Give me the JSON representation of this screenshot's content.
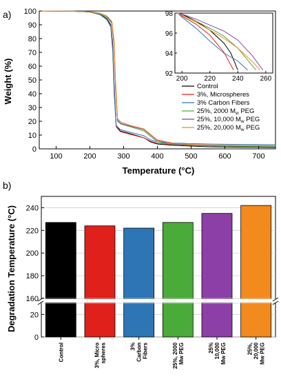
{
  "chart_data": [
    {
      "panel_label": "a)",
      "type": "line",
      "xlabel": "Temperature (°C)",
      "ylabel": "Weight (%)",
      "xlim": [
        50,
        750
      ],
      "ylim": [
        0,
        100
      ],
      "xticks": [
        "100",
        "200",
        "300",
        "400",
        "500",
        "600",
        "700"
      ],
      "yticks": [
        "0",
        "10",
        "20",
        "30",
        "40",
        "50",
        "60",
        "70",
        "80",
        "90",
        "100"
      ],
      "legend_position": "inside-right",
      "legend_title": "",
      "series": [
        {
          "name": "Control",
          "color": "#000000",
          "x": [
            50,
            150,
            200,
            230,
            250,
            262,
            268,
            272,
            278,
            290,
            320,
            360,
            380,
            400,
            450,
            500,
            550,
            600,
            650,
            700,
            750
          ],
          "y": [
            100,
            99.8,
            99.3,
            97.5,
            94.5,
            90,
            75,
            45,
            17,
            13,
            11,
            8,
            5,
            3.5,
            2.5,
            2,
            1.5,
            1.3,
            1.2,
            1.1,
            1
          ]
        },
        {
          "name": "3%, Microspheres",
          "color": "#e0201b",
          "x": [
            50,
            150,
            200,
            230,
            250,
            262,
            268,
            272,
            278,
            290,
            320,
            360,
            380,
            400,
            450,
            500,
            550,
            600,
            650,
            700,
            750
          ],
          "y": [
            100,
            99.8,
            99.3,
            97.4,
            94,
            89,
            72,
            42,
            16,
            12.5,
            10.5,
            8,
            5.5,
            4,
            3,
            2.5,
            2.2,
            2,
            1.8,
            1.6,
            1.5
          ]
        },
        {
          "name": "3% Carbon Fibers",
          "color": "#2e75b6",
          "x": [
            50,
            150,
            200,
            230,
            250,
            262,
            268,
            272,
            278,
            290,
            320,
            360,
            380,
            400,
            450,
            500,
            550,
            600,
            650,
            700,
            750
          ],
          "y": [
            100,
            99.8,
            99.3,
            97.3,
            93.8,
            88.5,
            70,
            40,
            17,
            14,
            12,
            9.5,
            6.5,
            5,
            4.2,
            3.8,
            3.5,
            3.3,
            3.2,
            3.1,
            3
          ]
        },
        {
          "name": "25%, 2000 M_w PEG",
          "color": "#4aab3a",
          "x": [
            50,
            150,
            200,
            230,
            250,
            265,
            272,
            276,
            282,
            292,
            320,
            360,
            380,
            400,
            450,
            500,
            550,
            600,
            650,
            700,
            750
          ],
          "y": [
            100,
            99.8,
            99.4,
            97.8,
            95.5,
            91,
            75,
            45,
            20,
            18,
            16,
            13,
            9,
            5,
            3,
            2.5,
            2.2,
            2,
            1.8,
            1.6,
            1.5
          ]
        },
        {
          "name": "25%, 10,000 M_w PEG",
          "color": "#8d3fa8",
          "x": [
            50,
            150,
            200,
            230,
            250,
            265,
            272,
            276,
            282,
            292,
            320,
            360,
            380,
            400,
            450,
            500,
            550,
            600,
            650,
            700,
            750
          ],
          "y": [
            100,
            99.8,
            99.5,
            98.3,
            96.2,
            92,
            76,
            47,
            21,
            18.5,
            16.5,
            14,
            10,
            6,
            3.5,
            3,
            2.7,
            2.5,
            2.4,
            2.3,
            2.2
          ]
        },
        {
          "name": "25%, 20,000 M_w PEG",
          "color": "#f28a1e",
          "x": [
            50,
            150,
            200,
            230,
            250,
            265,
            272,
            276,
            282,
            292,
            320,
            360,
            380,
            400,
            450,
            500,
            550,
            600,
            650,
            700,
            750
          ],
          "y": [
            100,
            99.8,
            99.5,
            98.4,
            96.5,
            92.5,
            78,
            50,
            22,
            19.5,
            17,
            14.5,
            10.5,
            6.5,
            4,
            3.2,
            2.8,
            2.6,
            2.5,
            2.4,
            2.3
          ]
        }
      ],
      "inset": {
        "type": "line",
        "xlim": [
          195,
          265
        ],
        "ylim": [
          92,
          98
        ],
        "xticks": [
          "200",
          "220",
          "240",
          "260"
        ],
        "yticks": [
          "92",
          "94",
          "96",
          "98"
        ],
        "series": [
          {
            "name": "Control",
            "color": "#000000",
            "x": [
              197,
              200,
              210,
              220,
              230,
              235,
              240
            ],
            "y": [
              98,
              97.9,
              97.2,
              96.3,
              95,
              94,
              92.3
            ]
          },
          {
            "name": "3%, Microspheres",
            "color": "#e0201b",
            "x": [
              197,
              200,
              210,
              220,
              230,
              237
            ],
            "y": [
              98,
              97.7,
              96.9,
              95.8,
              94.1,
              92.3
            ]
          },
          {
            "name": "3% Carbon Fibers",
            "color": "#2e75b6",
            "x": [
              197,
              200,
              210,
              220,
              230,
              240,
              247
            ],
            "y": [
              98,
              97.6,
              96.5,
              95.2,
              94,
              93.2,
              92.3
            ]
          },
          {
            "name": "25%, 2000 M_w PEG",
            "color": "#4aab3a",
            "x": [
              197,
              200,
              210,
              220,
              230,
              240,
              250,
              253
            ],
            "y": [
              98,
              97.8,
              97.2,
              96.5,
              95.7,
              94.5,
              92.8,
              92.3
            ]
          },
          {
            "name": "25%, 10,000 M_w PEG",
            "color": "#8d3fa8",
            "x": [
              197,
              200,
              210,
              220,
              230,
              240,
              250,
              258
            ],
            "y": [
              98,
              97.9,
              97.4,
              96.8,
              96.2,
              95.3,
              93.8,
              92.3
            ]
          },
          {
            "name": "25%, 20,000 M_w PEG",
            "color": "#f28a1e",
            "x": [
              197,
              200,
              210,
              220,
              230,
              240,
              250,
              256
            ],
            "y": [
              98,
              97.8,
              97.1,
              96.3,
              95.5,
              94.5,
              93.2,
              92.3
            ]
          }
        ]
      }
    },
    {
      "panel_label": "b)",
      "type": "bar",
      "ylabel": "Degradation Temperature (°C)",
      "axis_break": [
        30,
        160
      ],
      "ylim": [
        0,
        250
      ],
      "yticks_lower": [
        "0",
        "20"
      ],
      "yticks_upper": [
        "160",
        "180",
        "200",
        "220",
        "240"
      ],
      "grid": true,
      "categories": [
        [
          "Control"
        ],
        [
          "3%, Micro",
          "spheres"
        ],
        [
          "3%",
          "Carbon",
          "Fibers"
        ],
        [
          "25%, 2000",
          "Mw PEG"
        ],
        [
          "25%",
          "10,000",
          "Mw PEG"
        ],
        [
          "25%,",
          "20,000",
          "Mw PEG"
        ]
      ],
      "values": [
        227,
        224,
        222,
        227,
        235,
        242
      ],
      "colors": [
        "#000000",
        "#e0201b",
        "#2e75b6",
        "#4aab3a",
        "#8d3fa8",
        "#f28a1e"
      ]
    }
  ]
}
